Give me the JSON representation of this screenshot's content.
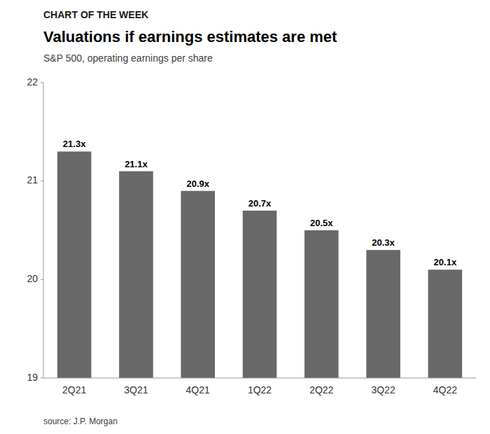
{
  "chart_data": {
    "type": "bar",
    "title": "Valuations if earnings estimates are met",
    "subtitle": "S&P 500, operating earnings per share",
    "annotations": [
      "CHART OF THE WEEK",
      "source: J.P. Morgan"
    ],
    "categories": [
      "2Q21",
      "3Q21",
      "4Q21",
      "1Q22",
      "2Q22",
      "3Q22",
      "4Q22"
    ],
    "values": [
      21.3,
      21.1,
      20.9,
      20.7,
      20.5,
      20.3,
      20.1
    ],
    "value_labels": [
      "21.3x",
      "21.1x",
      "20.9x",
      "20.7x",
      "20.5x",
      "20.3x",
      "20.1x"
    ],
    "data_labels": true,
    "color": "#686868",
    "ylim": [
      19,
      22
    ],
    "yticks": [
      19,
      20,
      21,
      22
    ],
    "grid": false
  }
}
